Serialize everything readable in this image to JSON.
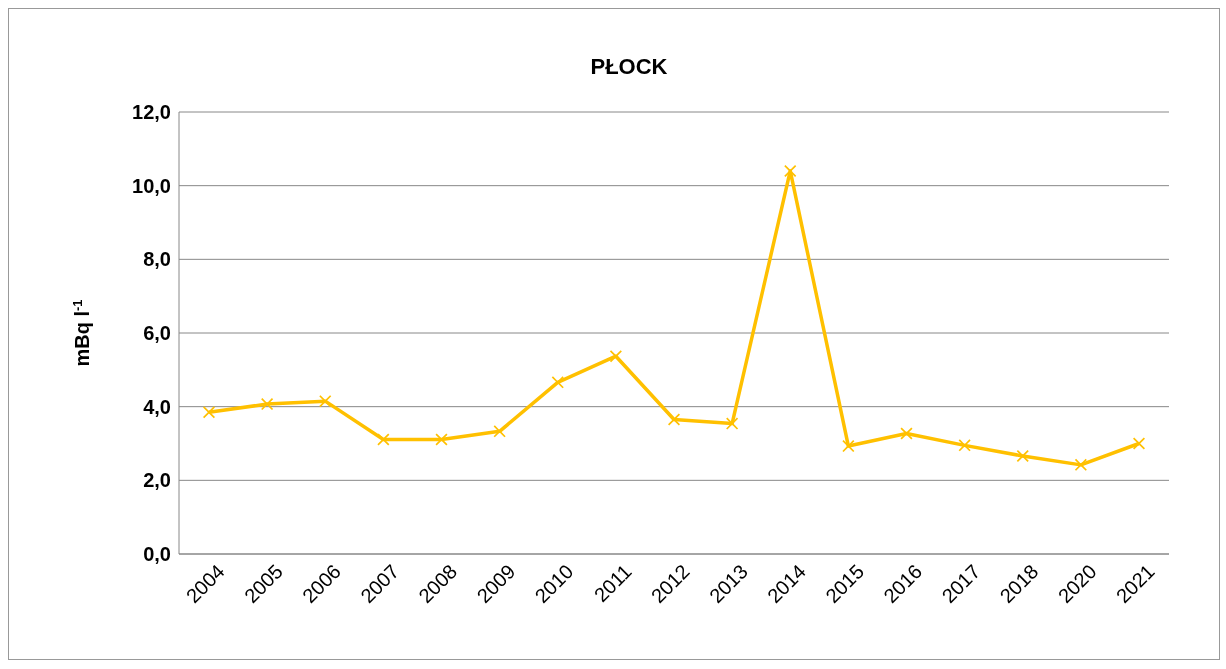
{
  "chart_data": {
    "type": "line",
    "title": "PŁOCK",
    "ylabel": "mBq l$^{-1}$",
    "categories": [
      "2004",
      "2005",
      "2006",
      "2007",
      "2008",
      "2009",
      "2010",
      "2011",
      "2012",
      "2013",
      "2014",
      "2015",
      "2016",
      "2017",
      "2018",
      "2020",
      "2021"
    ],
    "series": [
      {
        "color": "#ffc000",
        "values": [
          3.85,
          4.07,
          4.15,
          3.11,
          3.11,
          3.33,
          4.66,
          5.37,
          3.65,
          3.54,
          10.4,
          2.93,
          3.27,
          2.95,
          2.66,
          2.42,
          3.0
        ]
      }
    ],
    "ylim": [
      0,
      12
    ],
    "yticks": [
      {
        "value": 0,
        "label": "0,0"
      },
      {
        "value": 2,
        "label": "2,0"
      },
      {
        "value": 4,
        "label": "4,0"
      },
      {
        "value": 6,
        "label": "6,0"
      },
      {
        "value": 8,
        "label": "8,0"
      },
      {
        "value": 10,
        "label": "10,0"
      },
      {
        "value": 12,
        "label": "12,0"
      }
    ],
    "grid": "y",
    "marker": "cross",
    "line_style": "solid",
    "legend": false
  }
}
